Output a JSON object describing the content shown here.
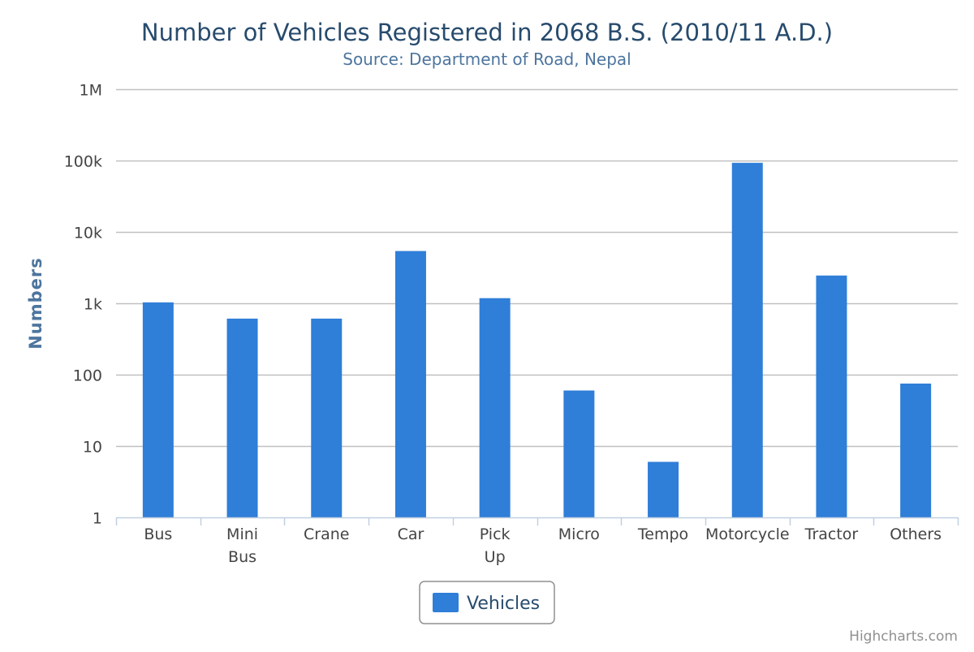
{
  "chart_data": {
    "type": "bar",
    "title": "Number of Vehicles Registered in 2068 B.S. (2010/11 A.D.)",
    "subtitle": "Source: Department of Road, Nepal",
    "ylabel": "Numbers",
    "xlabel": "",
    "y_scale": "log",
    "ylim": [
      1,
      1000000
    ],
    "y_ticks": [
      1,
      10,
      100,
      1000,
      10000,
      100000,
      1000000
    ],
    "y_tick_labels": [
      "1",
      "10",
      "100",
      "1k",
      "10k",
      "100k",
      "1M"
    ],
    "categories": [
      "Bus",
      "Mini Bus",
      "Crane",
      "Car",
      "Pick Up",
      "Micro",
      "Tempo",
      "Motorcycle",
      "Tractor",
      "Others"
    ],
    "category_lines": [
      [
        "Bus"
      ],
      [
        "Mini",
        "Bus"
      ],
      [
        "Crane"
      ],
      [
        "Car"
      ],
      [
        "Pick",
        "Up"
      ],
      [
        "Micro"
      ],
      [
        "Tempo"
      ],
      [
        "Motorcycle"
      ],
      [
        "Tractor"
      ],
      [
        "Others"
      ]
    ],
    "series": [
      {
        "name": "Vehicles",
        "color": "#2f7ed8",
        "values": [
          1030,
          610,
          610,
          5400,
          1180,
          60,
          6,
          93000,
          2450,
          75
        ]
      }
    ],
    "grid": true,
    "legend_position": "bottom-center",
    "credits": "Highcharts.com"
  }
}
